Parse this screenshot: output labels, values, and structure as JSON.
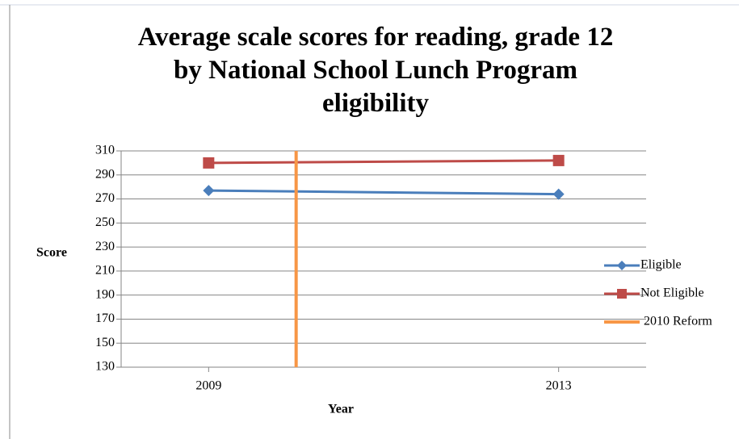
{
  "chart_data": {
    "type": "line",
    "title": "Average scale scores for reading, grade 12\nby National School Lunch Program\neligibility",
    "x_label": "Year",
    "y_label": "Score",
    "xlim": [
      2008,
      2014
    ],
    "xticks": [
      2009,
      2013
    ],
    "ylim": [
      130,
      310
    ],
    "yticks": [
      130,
      150,
      170,
      190,
      210,
      230,
      250,
      270,
      290,
      310
    ],
    "grid": true,
    "legend": "right",
    "series": [
      {
        "name": "Eligible",
        "color": "#4a7ebb",
        "marker": "diamond",
        "x": [
          2009,
          2013
        ],
        "values": [
          277,
          274
        ]
      },
      {
        "name": "Not Eligible",
        "color": "#be4b48",
        "marker": "square",
        "x": [
          2009,
          2013
        ],
        "values": [
          300,
          302
        ]
      },
      {
        "name": "2010  Reform",
        "color": "#f79646",
        "marker": "none",
        "x": [
          2010,
          2010
        ],
        "values": [
          310,
          130
        ]
      }
    ]
  }
}
